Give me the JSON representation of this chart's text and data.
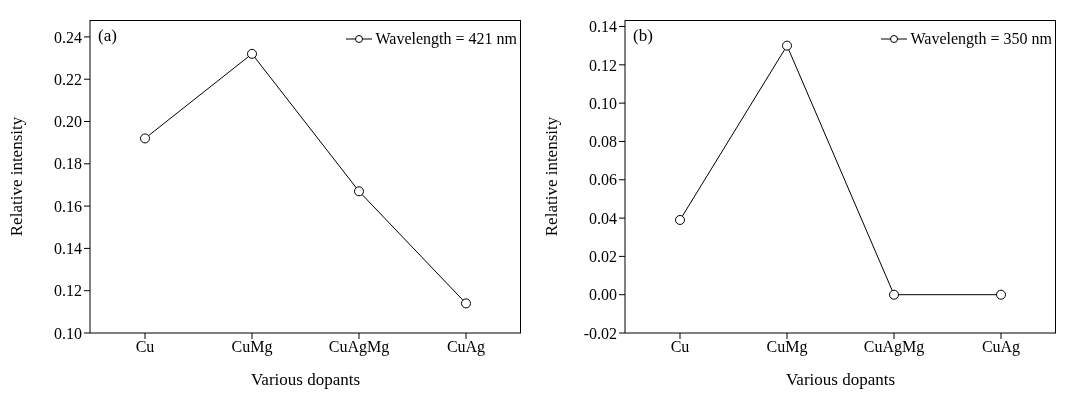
{
  "chart_data": [
    {
      "type": "line",
      "xlabel": "Various dopants",
      "ylabel": "Relative intensity",
      "annotations": [
        "(a)"
      ],
      "categories": [
        "Cu",
        "CuMg",
        "CuAgMg",
        "CuAg"
      ],
      "series": [
        {
          "name": "Wavelength = 421 nm",
          "color": "#000000",
          "values": [
            0.192,
            0.232,
            0.167,
            0.114
          ]
        }
      ],
      "ylim": [
        0.1,
        0.248
      ],
      "yticks": [
        {
          "value": 0.1,
          "label": "0.10"
        },
        {
          "value": 0.12,
          "label": "0.12"
        },
        {
          "value": 0.14,
          "label": "0.14"
        },
        {
          "value": 0.16,
          "label": "0.16"
        },
        {
          "value": 0.18,
          "label": "0.18"
        },
        {
          "value": 0.2,
          "label": "0.20"
        },
        {
          "value": 0.22,
          "label": "0.22"
        },
        {
          "value": 0.24,
          "label": "0.24"
        }
      ],
      "legend": "top right",
      "marker": "circle",
      "line_style": "solid",
      "grid": false
    },
    {
      "type": "line",
      "xlabel": "Various dopants",
      "ylabel": "Relative intensity",
      "annotations": [
        "(b)"
      ],
      "categories": [
        "Cu",
        "CuMg",
        "CuAgMg",
        "CuAg"
      ],
      "series": [
        {
          "name": "Wavelength = 350 nm",
          "color": "#000000",
          "values": [
            0.039,
            0.13,
            0,
            0
          ]
        }
      ],
      "ylim": [
        -0.02,
        0.1434
      ],
      "yticks": [
        {
          "value": -0.02,
          "label": "-0.02"
        },
        {
          "value": 0,
          "label": "0.00"
        },
        {
          "value": 0.02,
          "label": "0.02"
        },
        {
          "value": 0.04,
          "label": "0.04"
        },
        {
          "value": 0.06,
          "label": "0.06"
        },
        {
          "value": 0.08,
          "label": "0.08"
        },
        {
          "value": 0.1,
          "label": "0.10"
        },
        {
          "value": 0.12,
          "label": "0.12"
        },
        {
          "value": 0.14,
          "label": "0.14"
        }
      ],
      "legend": "top right",
      "marker": "circle",
      "line_style": "solid",
      "grid": false
    }
  ]
}
